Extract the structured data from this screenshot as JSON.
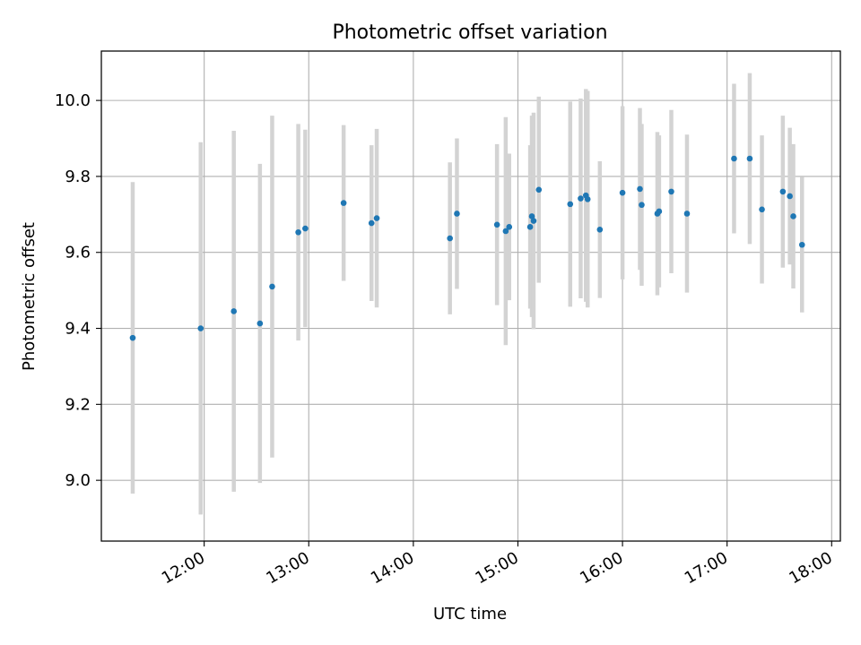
{
  "chart_data": {
    "type": "scatter",
    "title": "Photometric offset variation",
    "xlabel": "UTC time",
    "ylabel": "Photometric offset",
    "x_ticks": [
      "12:00",
      "13:00",
      "14:00",
      "15:00",
      "16:00",
      "17:00",
      "18:00"
    ],
    "y_ticks": [
      "9.0",
      "9.2",
      "9.4",
      "9.6",
      "9.8",
      "10.0"
    ],
    "xlim": [
      "11:01",
      "18:05"
    ],
    "ylim": [
      8.84,
      10.13
    ],
    "grid": true,
    "errorbars": true,
    "colors": {
      "point": "#1f77b4",
      "errorbar": "#d3d3d3",
      "grid": "#b0b0b0",
      "axis": "#000000"
    },
    "points": [
      {
        "t": "11:19",
        "y": 9.375,
        "err": 0.41
      },
      {
        "t": "11:58",
        "y": 9.4,
        "err": 0.49
      },
      {
        "t": "12:17",
        "y": 9.445,
        "err": 0.475
      },
      {
        "t": "12:32",
        "y": 9.413,
        "err": 0.42
      },
      {
        "t": "12:39",
        "y": 9.51,
        "err": 0.45
      },
      {
        "t": "12:54",
        "y": 9.653,
        "err": 0.285
      },
      {
        "t": "12:58",
        "y": 9.663,
        "err": 0.26
      },
      {
        "t": "13:20",
        "y": 9.73,
        "err": 0.205
      },
      {
        "t": "13:36",
        "y": 9.677,
        "err": 0.205
      },
      {
        "t": "13:39",
        "y": 9.69,
        "err": 0.235
      },
      {
        "t": "14:21",
        "y": 9.637,
        "err": 0.2
      },
      {
        "t": "14:25",
        "y": 9.702,
        "err": 0.198
      },
      {
        "t": "14:48",
        "y": 9.673,
        "err": 0.212
      },
      {
        "t": "14:53",
        "y": 9.656,
        "err": 0.3
      },
      {
        "t": "14:55",
        "y": 9.667,
        "err": 0.193
      },
      {
        "t": "15:07",
        "y": 9.667,
        "err": 0.215
      },
      {
        "t": "15:08",
        "y": 9.695,
        "err": 0.265
      },
      {
        "t": "15:09",
        "y": 9.683,
        "err": 0.285
      },
      {
        "t": "15:12",
        "y": 9.765,
        "err": 0.245
      },
      {
        "t": "15:30",
        "y": 9.727,
        "err": 0.27
      },
      {
        "t": "15:36",
        "y": 9.742,
        "err": 0.263
      },
      {
        "t": "15:39",
        "y": 9.75,
        "err": 0.28
      },
      {
        "t": "15:40",
        "y": 9.74,
        "err": 0.285
      },
      {
        "t": "15:47",
        "y": 9.66,
        "err": 0.18
      },
      {
        "t": "16:00",
        "y": 9.757,
        "err": 0.228
      },
      {
        "t": "16:10",
        "y": 9.767,
        "err": 0.213
      },
      {
        "t": "16:11",
        "y": 9.725,
        "err": 0.213
      },
      {
        "t": "16:20",
        "y": 9.702,
        "err": 0.215
      },
      {
        "t": "16:21",
        "y": 9.708,
        "err": 0.2
      },
      {
        "t": "16:28",
        "y": 9.76,
        "err": 0.215
      },
      {
        "t": "16:37",
        "y": 9.702,
        "err": 0.208
      },
      {
        "t": "17:04",
        "y": 9.847,
        "err": 0.197
      },
      {
        "t": "17:13",
        "y": 9.847,
        "err": 0.225
      },
      {
        "t": "17:20",
        "y": 9.713,
        "err": 0.195
      },
      {
        "t": "17:32",
        "y": 9.76,
        "err": 0.2
      },
      {
        "t": "17:36",
        "y": 9.748,
        "err": 0.18
      },
      {
        "t": "17:38",
        "y": 9.695,
        "err": 0.19
      },
      {
        "t": "17:43",
        "y": 9.62,
        "err": 0.178
      }
    ]
  }
}
